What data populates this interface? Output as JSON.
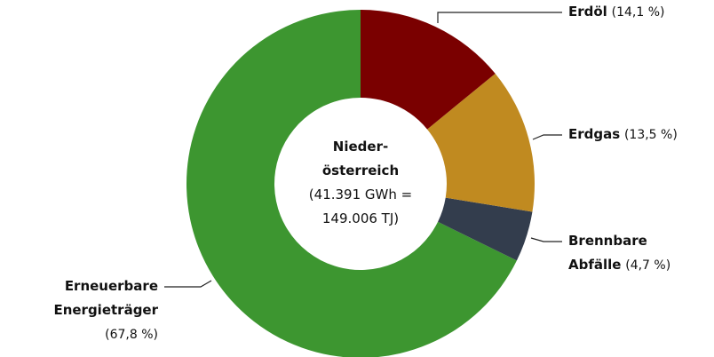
{
  "chart_data": {
    "type": "donut",
    "center_title": "Nieder-österreich",
    "center_subtitle": "(41.391 GWh = 149.006 TJ)",
    "categories": [
      "Erdöl",
      "Erdgas",
      "Brennbare Abfälle",
      "Erneuerbare Energieträger"
    ],
    "values": [
      14.1,
      13.5,
      4.7,
      67.8
    ],
    "value_labels": [
      "(14,1 %)",
      "(13,5 %)",
      "(4,7 %)",
      "(67,8 %)"
    ],
    "colors": [
      "#7a0000",
      "#c08a20",
      "#333d4d",
      "#3d9630"
    ]
  }
}
